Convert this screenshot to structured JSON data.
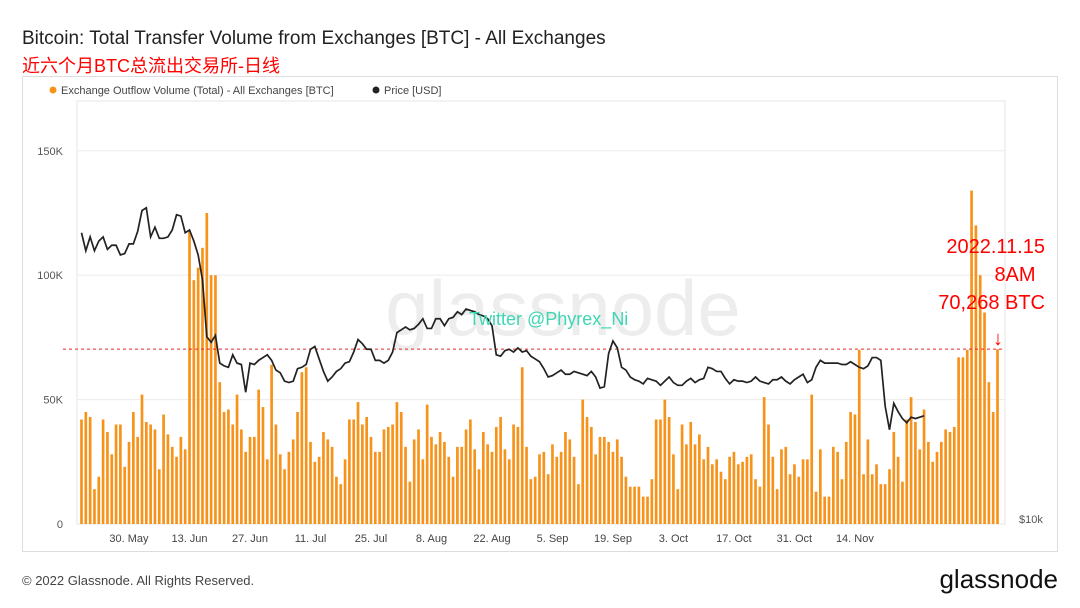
{
  "page": {
    "title": "Bitcoin: Total Transfer Volume from Exchanges [BTC] - All Exchanges",
    "subtitle": "近六个月BTC总流出交易所-日线",
    "footer": "© 2022 Glassnode. All Rights Reserved.",
    "brand": "glassnode"
  },
  "chart_data": {
    "type": "bar",
    "title": "Bitcoin: Total Transfer Volume from Exchanges [BTC] - All Exchanges",
    "subtitle": "近六个月BTC总流出交易所-日线",
    "legend": {
      "placement": "top-left",
      "items": [
        {
          "label": "Exchange Outflow Volume (Total) - All Exchanges [BTC]",
          "color": "#f7931a"
        },
        {
          "label": "Price [USD]",
          "color": "#222222"
        }
      ]
    },
    "x_ticks": [
      "30. May",
      "13. Jun",
      "27. Jun",
      "11. Jul",
      "25. Jul",
      "8. Aug",
      "22. Aug",
      "5. Sep",
      "19. Sep",
      "3. Oct",
      "17. Oct",
      "31. Oct",
      "14. Nov"
    ],
    "y_ticks": [
      "0",
      "50K",
      "100K",
      "150K"
    ],
    "ylim": [
      0,
      170000
    ],
    "right_axis_label": "$10k",
    "grid": true,
    "watermark": "glassnode",
    "annotations": {
      "twitter": "Twitter @Phyrex_Ni",
      "callout_lines": [
        "2022.11.15",
        "8AM",
        "70,268 BTC"
      ],
      "arrow": "↓",
      "reference_line_value": 70268
    },
    "series": [
      {
        "name": "Exchange Outflow Volume (Total) - All Exchanges [BTC]",
        "color": "#f7931a",
        "x_start": "2022-05-19",
        "values": [
          42000,
          45000,
          43000,
          14000,
          19000,
          42000,
          37000,
          28000,
          40000,
          40000,
          23000,
          33000,
          45000,
          35000,
          52000,
          41000,
          40000,
          38000,
          22000,
          44000,
          36000,
          31000,
          27000,
          35000,
          30000,
          118000,
          98000,
          103000,
          111000,
          125000,
          100000,
          100000,
          57000,
          45000,
          46000,
          40000,
          52000,
          38000,
          29000,
          35000,
          35000,
          54000,
          47000,
          26000,
          64000,
          40000,
          28000,
          22000,
          29000,
          34000,
          45000,
          61000,
          63000,
          33000,
          25000,
          27000,
          37000,
          34000,
          31000,
          19000,
          16000,
          26000,
          42000,
          42000,
          49000,
          40000,
          43000,
          35000,
          29000,
          29000,
          38000,
          39000,
          40000,
          49000,
          45000,
          31000,
          17000,
          34000,
          38000,
          26000,
          48000,
          35000,
          32000,
          37000,
          33000,
          27000,
          19000,
          31000,
          31000,
          38000,
          42000,
          30000,
          22000,
          37000,
          32000,
          29000,
          39000,
          43000,
          30000,
          26000,
          40000,
          39000,
          63000,
          31000,
          18000,
          19000,
          28000,
          29000,
          20000,
          32000,
          27000,
          29000,
          37000,
          34000,
          27000,
          16000,
          50000,
          43000,
          39000,
          28000,
          35000,
          35000,
          33000,
          29000,
          34000,
          27000,
          19000,
          15000,
          15000,
          15000,
          11000,
          11000,
          18000,
          42000,
          42000,
          50000,
          43000,
          28000,
          14000,
          40000,
          32000,
          41000,
          32000,
          36000,
          26000,
          31000,
          24000,
          26000,
          21000,
          18000,
          27000,
          29000,
          24000,
          25000,
          27000,
          28000,
          18000,
          15000,
          51000,
          40000,
          27000,
          14000,
          30000,
          31000,
          20000,
          24000,
          19000,
          26000,
          26000,
          52000,
          13000,
          30000,
          11000,
          11000,
          31000,
          29000,
          18000,
          33000,
          45000,
          44000,
          70000,
          20000,
          34000,
          20000,
          24000,
          16000,
          16000,
          22000,
          37000,
          27000,
          17000,
          42000,
          51000,
          41000,
          30000,
          46000,
          33000,
          25000,
          29000,
          33000,
          38000,
          37000,
          39000,
          67000,
          67000,
          70000,
          134000,
          120000,
          100000,
          85000,
          57000,
          45000,
          70268
        ]
      },
      {
        "name": "Price [USD]",
        "color": "#222222",
        "x_start": "2022-05-19",
        "values": [
          30000,
          28700,
          29700,
          28700,
          29400,
          29700,
          28800,
          29100,
          29100,
          28400,
          28500,
          29200,
          29200,
          30100,
          31600,
          31800,
          29700,
          30400,
          29600,
          29600,
          29700,
          30200,
          31300,
          31200,
          30000,
          30200,
          29400,
          28400,
          26600,
          22500,
          22100,
          22600,
          20600,
          20400,
          20300,
          21200,
          20600,
          20500,
          18500,
          20600,
          20500,
          20800,
          21000,
          21200,
          20800,
          20100,
          19900,
          19300,
          19200,
          19300,
          20200,
          20300,
          20500,
          21600,
          21800,
          20900,
          20000,
          19300,
          19600,
          20000,
          20200,
          20600,
          20700,
          21400,
          22300,
          22000,
          21600,
          21600,
          20800,
          20800,
          20600,
          20800,
          21400,
          22800,
          23000,
          23200,
          23000,
          23100,
          23400,
          23800,
          23100,
          23100,
          23800,
          23800,
          23300,
          23800,
          23900,
          24300,
          24100,
          24500,
          24400,
          24300,
          24100,
          24000,
          23800,
          23300,
          21200,
          21100,
          21500,
          21600,
          21400,
          21700,
          21400,
          21500,
          21100,
          20900,
          20700,
          20200,
          19600,
          19700,
          19900,
          20100,
          19800,
          19800,
          20000,
          19900,
          19800,
          19700,
          20000,
          19600,
          18800,
          18900,
          21300,
          22200,
          21700,
          20300,
          20100,
          19600,
          19400,
          19300,
          19100,
          19500,
          19400,
          19300,
          19000,
          19300,
          19600,
          19200,
          19000,
          19000,
          19300,
          19500,
          19200,
          19400,
          19500,
          20300,
          20200,
          20000,
          20000,
          19500,
          19100,
          19400,
          19300,
          19300,
          19200,
          19300,
          19600,
          19300,
          19200,
          19100,
          19400,
          19400,
          19600,
          19300,
          19100,
          19400,
          19600,
          19800,
          19200,
          19400,
          20300,
          20800,
          20600,
          20600,
          20600,
          20600,
          20500,
          20500,
          20700,
          20500,
          20300,
          20200,
          20400,
          21000,
          21000,
          20800,
          17500,
          15800,
          17700,
          17100,
          16600,
          16300,
          16700,
          16600,
          16700,
          16800
        ]
      }
    ],
    "price_axis_range": [
      9000,
      39500
    ]
  }
}
